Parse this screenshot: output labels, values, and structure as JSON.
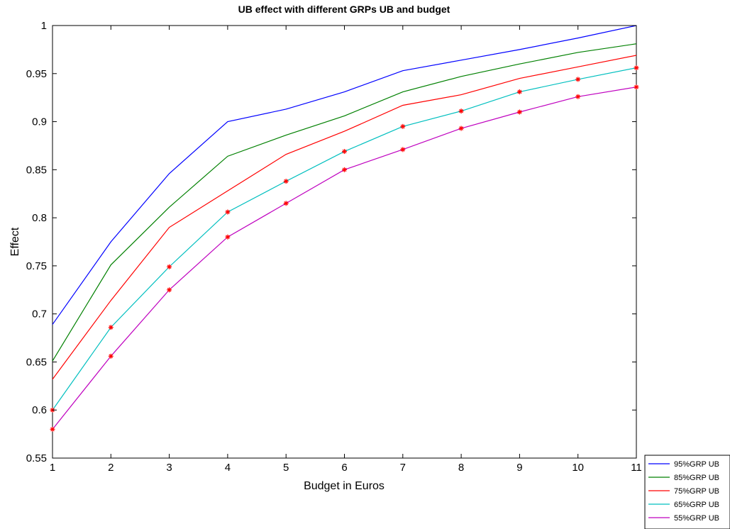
{
  "chart_data": {
    "type": "line",
    "title": "UB effect with different GRPs UB and budget",
    "xlabel": "Budget in Euros",
    "ylabel": "Effect",
    "x": [
      1,
      2,
      3,
      4,
      5,
      6,
      7,
      8,
      9,
      10,
      11
    ],
    "xlim": [
      1,
      11
    ],
    "ylim": [
      0.55,
      1
    ],
    "xticks": [
      1,
      2,
      3,
      4,
      5,
      6,
      7,
      8,
      9,
      10,
      11
    ],
    "yticks": [
      0.55,
      0.6,
      0.65,
      0.7,
      0.75,
      0.8,
      0.85,
      0.9,
      0.95,
      1
    ],
    "ytick_labels": [
      "0.55",
      "0.6",
      "0.65",
      "0.7",
      "0.75",
      "0.8",
      "0.85",
      "0.9",
      "0.95",
      "1"
    ],
    "grid": false,
    "legend_position": "bottom-right-outside",
    "marker_color": "#ff0000",
    "series": [
      {
        "name": "95%GRP UB",
        "color": "#0000ff",
        "markers": false,
        "values": [
          0.689,
          0.775,
          0.846,
          0.9,
          0.913,
          0.931,
          0.953,
          0.964,
          0.975,
          0.987,
          1.0
        ]
      },
      {
        "name": "85%GRP UB",
        "color": "#008000",
        "markers": false,
        "values": [
          0.651,
          0.751,
          0.811,
          0.864,
          0.886,
          0.906,
          0.931,
          0.947,
          0.96,
          0.972,
          0.981
        ]
      },
      {
        "name": "75%GRP UB",
        "color": "#ff0000",
        "markers": false,
        "values": [
          0.632,
          0.714,
          0.79,
          0.828,
          0.866,
          0.89,
          0.917,
          0.928,
          0.945,
          0.957,
          0.969
        ]
      },
      {
        "name": "65%GRP UB",
        "color": "#00bfbf",
        "markers": true,
        "values": [
          0.6,
          0.686,
          0.749,
          0.806,
          0.838,
          0.869,
          0.895,
          0.911,
          0.931,
          0.944,
          0.956
        ]
      },
      {
        "name": "55%GRP UB",
        "color": "#bf00bf",
        "markers": true,
        "values": [
          0.58,
          0.656,
          0.725,
          0.78,
          0.815,
          0.85,
          0.871,
          0.893,
          0.91,
          0.926,
          0.936
        ]
      }
    ]
  }
}
